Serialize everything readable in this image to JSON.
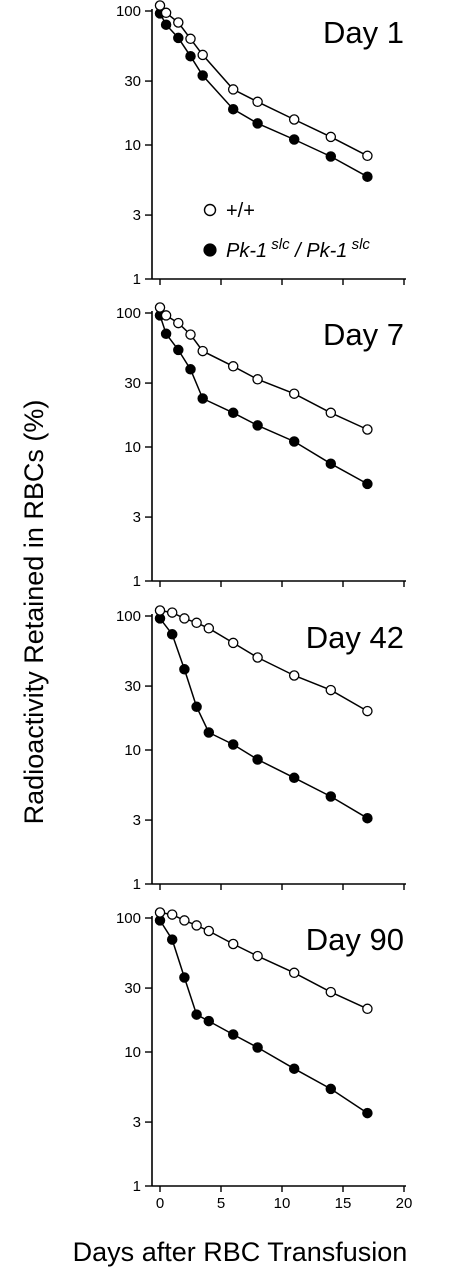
{
  "chart_data": {
    "type": "line",
    "ylabel": "Radioactivity Retained in RBCs (%)",
    "xlabel": "Days after RBC Transfusion",
    "xlim": [
      0,
      20
    ],
    "x_ticks": [
      "0",
      "5",
      "10",
      "15",
      "20"
    ],
    "ylim": [
      1,
      100
    ],
    "yscale": "log",
    "y_ticks": [
      {
        "value": 100,
        "label": "100"
      },
      {
        "value": 30,
        "label": "30"
      },
      {
        "value": 10,
        "label": "10"
      },
      {
        "value": 3,
        "label": "3"
      },
      {
        "value": 1,
        "label": "1"
      }
    ],
    "legend": {
      "location": "top panel, left-center",
      "items": [
        {
          "marker": "open-circle",
          "text": "+/+"
        },
        {
          "marker": "filled-circle",
          "text": "Pk-1",
          "sup": "slc",
          "text2": " / Pk-1",
          "sup2": "slc"
        }
      ]
    },
    "panels": [
      {
        "title": "Day 1",
        "series": [
          {
            "marker": "open",
            "x": [
              0,
              0.5,
              1.5,
              2.5,
              3.5,
              6,
              8,
              11,
              14,
              17
            ],
            "y": [
              110,
              97,
              82,
              62,
              47,
              26,
              21,
              15.5,
              11.5,
              8.3
            ]
          },
          {
            "marker": "filled",
            "x": [
              0,
              0.5,
              1.5,
              2.5,
              3.5,
              6,
              8,
              11,
              14,
              17
            ],
            "y": [
              96,
              79,
              63,
              46,
              33,
              18.5,
              14.5,
              11,
              8.2,
              5.8
            ]
          }
        ]
      },
      {
        "title": "Day 7",
        "series": [
          {
            "marker": "open",
            "x": [
              0,
              0.5,
              1.5,
              2.5,
              3.5,
              6,
              8,
              11,
              14,
              17
            ],
            "y": [
              110,
              96,
              84,
              69,
              52,
              40,
              32,
              25,
              18,
              13.5
            ]
          },
          {
            "marker": "filled",
            "x": [
              0,
              0.5,
              1.5,
              2.5,
              3.5,
              6,
              8,
              11,
              14,
              17
            ],
            "y": [
              96,
              70,
              53,
              38,
              23,
              18,
              14.5,
              11,
              7.5,
              5.3
            ]
          }
        ]
      },
      {
        "title": "Day 42",
        "series": [
          {
            "marker": "open",
            "x": [
              0,
              1,
              2,
              3,
              4,
              6,
              8,
              11,
              14,
              17
            ],
            "y": [
              110,
              106,
              96,
              89,
              81,
              63,
              49,
              36,
              28,
              19.5
            ]
          },
          {
            "marker": "filled",
            "x": [
              0,
              1,
              2,
              3,
              4,
              6,
              8,
              11,
              14,
              17
            ],
            "y": [
              96,
              73,
              40,
              21,
              13.5,
              11,
              8.5,
              6.2,
              4.5,
              3.1
            ]
          }
        ]
      },
      {
        "title": "Day 90",
        "series": [
          {
            "marker": "open",
            "x": [
              0,
              1,
              2,
              3,
              4,
              6,
              8,
              11,
              14,
              17
            ],
            "y": [
              110,
              106,
              96,
              88,
              80,
              64,
              52,
              39,
              28,
              21
            ]
          },
          {
            "marker": "filled",
            "x": [
              0,
              1,
              2,
              3,
              4,
              6,
              8,
              11,
              14,
              17
            ],
            "y": [
              96,
              69,
              36,
              19,
              17,
              13.5,
              10.8,
              7.5,
              5.3,
              3.5
            ]
          }
        ]
      }
    ]
  }
}
